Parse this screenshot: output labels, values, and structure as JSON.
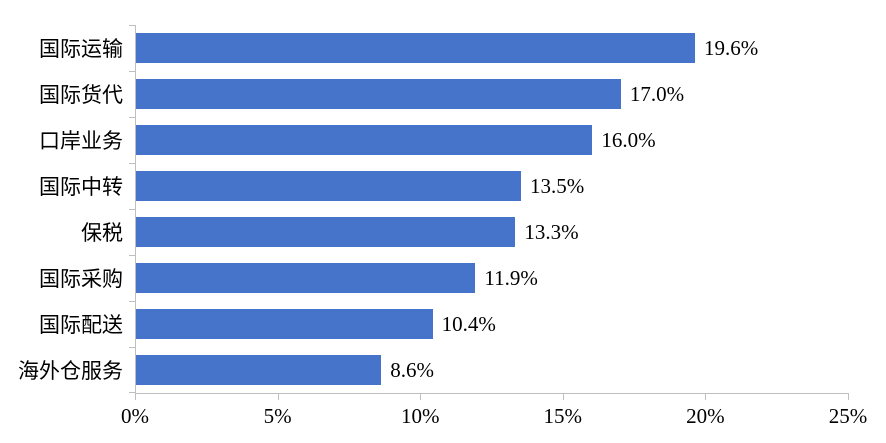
{
  "chart_data": {
    "type": "bar",
    "orientation": "horizontal",
    "title": "",
    "xlabel": "",
    "ylabel": "",
    "categories": [
      "国际运输",
      "国际货代",
      "口岸业务",
      "国际中转",
      "保税",
      "国际采购",
      "国际配送",
      "海外仓服务"
    ],
    "values": [
      19.6,
      17.0,
      16.0,
      13.5,
      13.3,
      11.9,
      10.4,
      8.6
    ],
    "value_labels": [
      "19.6%",
      "17.0%",
      "16.0%",
      "13.5%",
      "13.3%",
      "11.9%",
      "10.4%",
      "8.6%"
    ],
    "xlim": [
      0,
      25
    ],
    "x_tick_values": [
      0,
      5,
      10,
      15,
      20,
      25
    ],
    "x_tick_labels": [
      "0%",
      "5%",
      "10%",
      "15%",
      "20%",
      "25%"
    ],
    "grid": false,
    "legend_position": "none",
    "bar_color": "#4674CA",
    "axis_color": "#BFBFBF",
    "text_color": "#000000"
  }
}
